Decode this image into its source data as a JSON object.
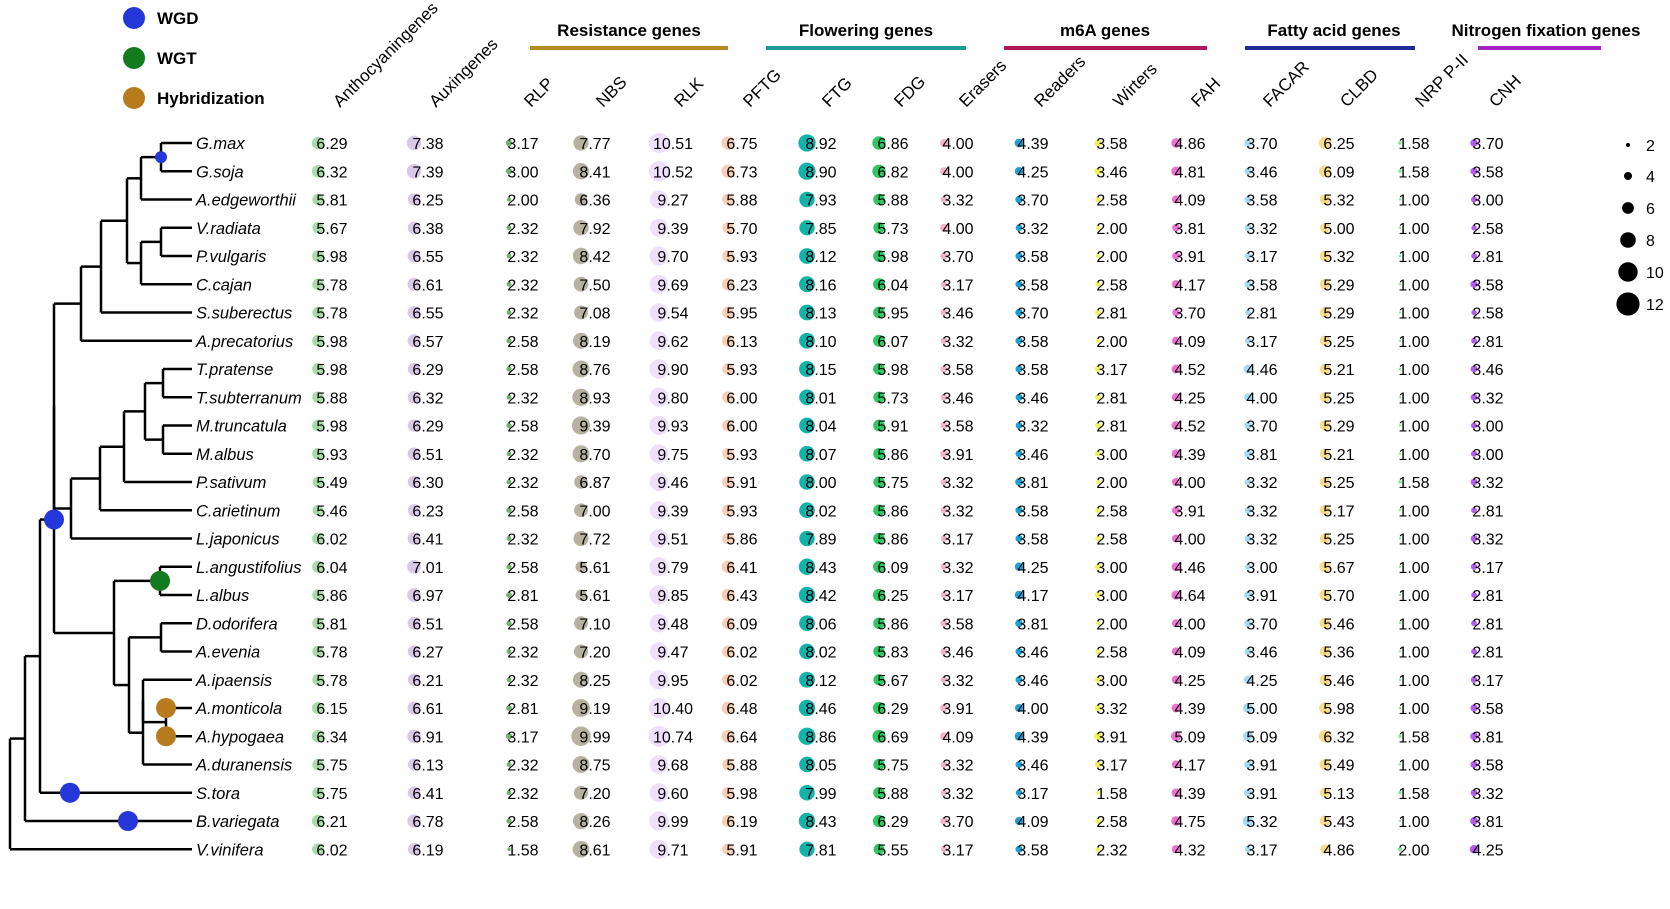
{
  "chart_data": {
    "type": "bubble-matrix",
    "legend_events": [
      {
        "label": "WGD",
        "color": "#2537D8"
      },
      {
        "label": "WGT",
        "color": "#137B1E"
      },
      {
        "label": "Hybridization",
        "color": "#B77B1E"
      }
    ],
    "size_legend": [
      2,
      4,
      6,
      8,
      10,
      12
    ],
    "groups": [
      {
        "label": "Resistance genes",
        "color": "#B58A22"
      },
      {
        "label": "Flowering genes",
        "color": "#1E9C94"
      },
      {
        "label": "m6A genes",
        "color": "#B0175A"
      },
      {
        "label": "Fatty acid genes",
        "color": "#1E2E96"
      },
      {
        "label": "Nitrogen fixation genes",
        "color": "#A324C2"
      }
    ],
    "columns": [
      {
        "label": "Anthocyaningenes",
        "color": "#A9DBA9"
      },
      {
        "label": "Auxingenes",
        "color": "#D9C8E7"
      },
      {
        "label": "RLP",
        "color": "#6FB36F",
        "group": 0
      },
      {
        "label": "NBS",
        "color": "#B7B29F",
        "group": 0
      },
      {
        "label": "RLK",
        "color": "#EEE0FA",
        "group": 0
      },
      {
        "label": "PFTG",
        "color": "#F8CFB6",
        "group": 1
      },
      {
        "label": "FTG",
        "color": "#13B2AB",
        "group": 1
      },
      {
        "label": "FDG",
        "color": "#2FC764",
        "group": 1
      },
      {
        "label": "Erasers",
        "color": "#F2B6C6",
        "group": 2
      },
      {
        "label": "Readers",
        "color": "#1E9FD6",
        "group": 2
      },
      {
        "label": "Wirters",
        "color": "#F2F253",
        "group": 2
      },
      {
        "label": "FAH",
        "color": "#EE71D3",
        "group": 3
      },
      {
        "label": "FACAR",
        "color": "#A5DBF2",
        "group": 3
      },
      {
        "label": "CLBD",
        "color": "#F7DC8E",
        "group": 3
      },
      {
        "label": "NRP P-II",
        "color": "#86E39A",
        "group": 4
      },
      {
        "label": "CNH",
        "color": "#B55CEE",
        "group": 4
      }
    ],
    "species": [
      "G.max",
      "G.soja",
      "A.edgeworthii",
      "V.radiata",
      "P.vulgaris",
      "C.cajan",
      "S.suberectus",
      "A.precatorius",
      "T.pratense",
      "T.subterranum",
      "M.truncatula",
      "M.albus",
      "P.sativum",
      "C.arietinum",
      "L.japonicus",
      "L.angustifolius",
      "L.albus",
      "D.odorifera",
      "A.evenia",
      "A.ipaensis",
      "A.monticola",
      "A.hypogaea",
      "A.duranensis",
      "S.tora",
      "B.variegata",
      "V.vinifera"
    ],
    "values": [
      [
        "6.29",
        "7.38",
        "3.17",
        "7.77",
        "10.51",
        "6.75",
        "8.92",
        "6.86",
        "4.00",
        "4.39",
        "3.58",
        "4.86",
        "3.70",
        "6.25",
        "1.58",
        "3.70"
      ],
      [
        "6.32",
        "7.39",
        "3.00",
        "8.41",
        "10.52",
        "6.73",
        "8.90",
        "6.82",
        "4.00",
        "4.25",
        "3.46",
        "4.81",
        "3.46",
        "6.09",
        "1.58",
        "3.58"
      ],
      [
        "5.81",
        "6.25",
        "2.00",
        "6.36",
        "9.27",
        "5.88",
        "7.93",
        "5.88",
        "3.32",
        "3.70",
        "2.58",
        "4.09",
        "3.58",
        "5.32",
        "1.00",
        "3.00"
      ],
      [
        "5.67",
        "6.38",
        "2.32",
        "7.92",
        "9.39",
        "5.70",
        "7.85",
        "5.73",
        "4.00",
        "3.32",
        "2.00",
        "3.81",
        "3.32",
        "5.00",
        "1.00",
        "2.58"
      ],
      [
        "5.98",
        "6.55",
        "2.32",
        "8.42",
        "9.70",
        "5.93",
        "8.12",
        "5.98",
        "3.70",
        "3.58",
        "2.00",
        "3.91",
        "3.17",
        "5.32",
        "1.00",
        "2.81"
      ],
      [
        "5.78",
        "6.61",
        "2.32",
        "7.50",
        "9.69",
        "6.23",
        "8.16",
        "6.04",
        "3.17",
        "3.58",
        "2.58",
        "4.17",
        "3.58",
        "5.29",
        "1.00",
        "3.58"
      ],
      [
        "5.78",
        "6.55",
        "2.32",
        "7.08",
        "9.54",
        "5.95",
        "8.13",
        "5.95",
        "3.46",
        "3.70",
        "2.81",
        "3.70",
        "2.81",
        "5.29",
        "1.00",
        "2.58"
      ],
      [
        "5.98",
        "6.57",
        "2.58",
        "8.19",
        "9.62",
        "6.13",
        "8.10",
        "6.07",
        "3.32",
        "3.58",
        "2.00",
        "4.09",
        "3.17",
        "5.25",
        "1.00",
        "2.81"
      ],
      [
        "5.98",
        "6.29",
        "2.58",
        "8.76",
        "9.90",
        "5.93",
        "8.15",
        "5.98",
        "3.58",
        "3.58",
        "3.17",
        "4.52",
        "4.46",
        "5.21",
        "1.00",
        "3.46"
      ],
      [
        "5.88",
        "6.32",
        "2.32",
        "8.93",
        "9.80",
        "6.00",
        "8.01",
        "5.73",
        "3.46",
        "3.46",
        "2.81",
        "4.25",
        "4.00",
        "5.25",
        "1.00",
        "3.32"
      ],
      [
        "5.98",
        "6.29",
        "2.58",
        "9.39",
        "9.93",
        "6.00",
        "8.04",
        "5.91",
        "3.58",
        "3.32",
        "2.81",
        "4.52",
        "3.70",
        "5.29",
        "1.00",
        "3.00"
      ],
      [
        "5.93",
        "6.51",
        "2.32",
        "8.70",
        "9.75",
        "5.93",
        "8.07",
        "5.86",
        "3.91",
        "3.46",
        "3.00",
        "4.39",
        "3.81",
        "5.21",
        "1.00",
        "3.00"
      ],
      [
        "5.49",
        "6.30",
        "2.32",
        "6.87",
        "9.46",
        "5.91",
        "8.00",
        "5.75",
        "3.32",
        "3.81",
        "2.00",
        "4.00",
        "3.32",
        "5.25",
        "1.58",
        "3.32"
      ],
      [
        "5.46",
        "6.23",
        "2.58",
        "7.00",
        "9.39",
        "5.93",
        "8.02",
        "5.86",
        "3.32",
        "3.58",
        "2.58",
        "3.91",
        "3.32",
        "5.17",
        "1.00",
        "2.81"
      ],
      [
        "6.02",
        "6.41",
        "2.32",
        "7.72",
        "9.51",
        "5.86",
        "7.89",
        "5.86",
        "3.17",
        "3.58",
        "2.58",
        "4.00",
        "3.32",
        "5.25",
        "1.00",
        "3.32"
      ],
      [
        "6.04",
        "7.01",
        "2.58",
        "5.61",
        "9.79",
        "6.41",
        "8.43",
        "6.09",
        "3.32",
        "4.25",
        "3.00",
        "4.46",
        "3.00",
        "5.67",
        "1.00",
        "3.17"
      ],
      [
        "5.86",
        "6.97",
        "2.81",
        "5.61",
        "9.85",
        "6.43",
        "8.42",
        "6.25",
        "3.17",
        "4.17",
        "3.00",
        "4.64",
        "3.91",
        "5.70",
        "1.00",
        "2.81"
      ],
      [
        "5.81",
        "6.51",
        "2.58",
        "7.10",
        "9.48",
        "6.09",
        "8.06",
        "5.86",
        "3.58",
        "3.81",
        "2.00",
        "4.00",
        "3.70",
        "5.46",
        "1.00",
        "2.81"
      ],
      [
        "5.78",
        "6.27",
        "2.32",
        "7.20",
        "9.47",
        "6.02",
        "8.02",
        "5.83",
        "3.46",
        "3.46",
        "2.58",
        "4.09",
        "3.46",
        "5.36",
        "1.00",
        "2.81"
      ],
      [
        "5.78",
        "6.21",
        "2.32",
        "8.25",
        "9.95",
        "6.02",
        "8.12",
        "5.67",
        "3.32",
        "3.46",
        "3.00",
        "4.25",
        "4.25",
        "5.46",
        "1.00",
        "3.17"
      ],
      [
        "6.15",
        "6.61",
        "2.81",
        "9.19",
        "10.40",
        "6.48",
        "8.46",
        "6.29",
        "3.91",
        "4.00",
        "3.32",
        "4.39",
        "5.00",
        "5.98",
        "1.00",
        "3.58"
      ],
      [
        "6.34",
        "6.91",
        "3.17",
        "9.99",
        "10.74",
        "6.64",
        "8.86",
        "6.69",
        "4.09",
        "4.39",
        "3.91",
        "5.09",
        "5.09",
        "6.32",
        "1.58",
        "3.81"
      ],
      [
        "5.75",
        "6.13",
        "2.32",
        "8.75",
        "9.68",
        "5.88",
        "8.05",
        "5.75",
        "3.32",
        "3.46",
        "3.17",
        "4.17",
        "3.91",
        "5.49",
        "1.00",
        "3.58"
      ],
      [
        "5.75",
        "6.41",
        "2.32",
        "7.20",
        "9.60",
        "5.98",
        "7.99",
        "5.88",
        "3.32",
        "3.17",
        "1.58",
        "4.39",
        "3.91",
        "5.13",
        "1.58",
        "3.32"
      ],
      [
        "6.21",
        "6.78",
        "2.58",
        "8.26",
        "9.99",
        "6.19",
        "8.43",
        "6.29",
        "3.70",
        "4.09",
        "2.58",
        "4.75",
        "5.32",
        "5.43",
        "1.00",
        "3.81"
      ],
      [
        "6.02",
        "6.19",
        "1.58",
        "8.61",
        "9.71",
        "5.91",
        "7.81",
        "5.55",
        "3.17",
        "3.58",
        "2.32",
        "4.32",
        "3.17",
        "4.86",
        "2.00",
        "4.25"
      ]
    ],
    "events_on_tree": [
      {
        "event": "WGD",
        "node": "G.max|G.soja"
      },
      {
        "event": "WGD",
        "node": "papilionoid crown"
      },
      {
        "event": "WGT",
        "node": "L.angustifolius|L.albus"
      },
      {
        "event": "Hybridization",
        "node": "A.monticola"
      },
      {
        "event": "Hybridization",
        "node": "A.hypogaea"
      },
      {
        "event": "WGD",
        "node": "S.tora"
      },
      {
        "event": "WGD",
        "node": "B.variegata"
      }
    ]
  }
}
